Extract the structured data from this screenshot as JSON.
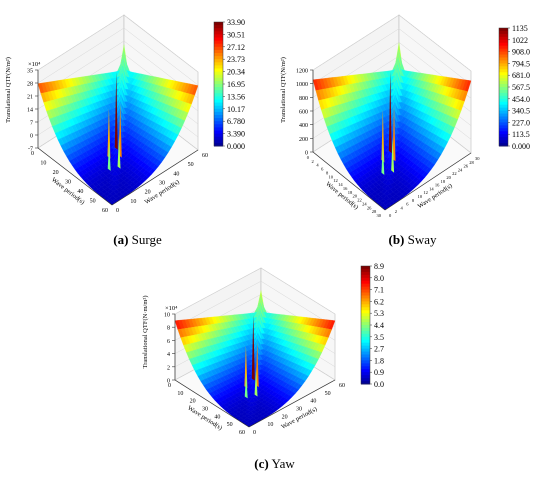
{
  "figure": {
    "panels": [
      {
        "id": "a",
        "caption_letter": "(a)",
        "caption_name": "Surge",
        "chart_data": {
          "type": "surface3d",
          "title": "",
          "zlabel": "Translational QTF(N/m²)",
          "xlabel": "Wave period(s)",
          "ylabel": "Wave period(s)",
          "z_multiplier": "×10⁴",
          "z_ticks": [
            "-7",
            "0",
            "7",
            "14",
            "21",
            "28",
            "35"
          ],
          "x_ticks": [
            "0",
            "10",
            "20",
            "30",
            "40",
            "50",
            "60"
          ],
          "y_ticks": [
            "60",
            "50",
            "40",
            "30",
            "20",
            "10",
            "0"
          ],
          "colorbar_ticks": [
            "33.90",
            "30.51",
            "27.12",
            "23.73",
            "20.34",
            "16.95",
            "13.56",
            "10.17",
            "6.780",
            "3.390",
            "0.000"
          ],
          "colorbar_range": [
            0,
            33.9
          ],
          "peak_value": 33.9,
          "ridge_value": 28,
          "colormap": "jet"
        }
      },
      {
        "id": "b",
        "caption_letter": "(b)",
        "caption_name": "Sway",
        "chart_data": {
          "type": "surface3d",
          "title": "",
          "zlabel": "Translational QTF(N/m²)",
          "xlabel": "Wave period(s)",
          "ylabel": "Wave period(s)",
          "z_multiplier": "",
          "z_ticks": [
            "0",
            "200",
            "400",
            "600",
            "800",
            "1000",
            "1200"
          ],
          "x_ticks": [
            "0",
            "2",
            "4",
            "6",
            "8",
            "10",
            "12",
            "14",
            "16",
            "18",
            "20",
            "22",
            "24",
            "26",
            "28",
            "30"
          ],
          "y_ticks": [
            "30",
            "28",
            "26",
            "24",
            "22",
            "20",
            "18",
            "16",
            "14",
            "12",
            "10",
            "8",
            "6",
            "4",
            "2",
            "0"
          ],
          "colorbar_ticks": [
            "1135",
            "1022",
            "908.0",
            "794.5",
            "681.0",
            "567.5",
            "454.0",
            "340.5",
            "227.0",
            "113.5",
            "0.000"
          ],
          "colorbar_range": [
            0,
            1135
          ],
          "peak_value": 1135,
          "ridge_value": 1000,
          "colormap": "jet"
        }
      },
      {
        "id": "c",
        "caption_letter": "(c)",
        "caption_name": "Yaw",
        "chart_data": {
          "type": "surface3d",
          "title": "",
          "zlabel": "Translational QTF(N·m/m²)",
          "xlabel": "Wave period(s)",
          "ylabel": "Wave period(s)",
          "z_multiplier": "×10⁴",
          "z_ticks": [
            "0",
            "2",
            "4",
            "6",
            "8",
            "10"
          ],
          "x_ticks": [
            "0",
            "10",
            "20",
            "30",
            "40",
            "50",
            "60"
          ],
          "y_ticks": [
            "60",
            "50",
            "40",
            "30",
            "20",
            "10",
            "0"
          ],
          "colorbar_ticks": [
            "8.9",
            "8.0",
            "7.1",
            "6.2",
            "5.3",
            "4.4",
            "3.5",
            "2.7",
            "1.8",
            "0.9",
            "0.0"
          ],
          "colorbar_range": [
            0,
            8.9
          ],
          "peak_value": 8.9,
          "ridge_value": 8,
          "colormap": "jet"
        }
      }
    ]
  }
}
